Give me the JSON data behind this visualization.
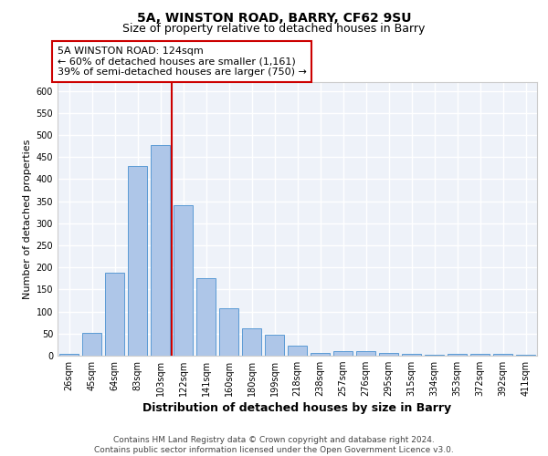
{
  "title": "5A, WINSTON ROAD, BARRY, CF62 9SU",
  "subtitle": "Size of property relative to detached houses in Barry",
  "xlabel": "Distribution of detached houses by size in Barry",
  "ylabel": "Number of detached properties",
  "categories": [
    "26sqm",
    "45sqm",
    "64sqm",
    "83sqm",
    "103sqm",
    "122sqm",
    "141sqm",
    "160sqm",
    "180sqm",
    "199sqm",
    "218sqm",
    "238sqm",
    "257sqm",
    "276sqm",
    "295sqm",
    "315sqm",
    "334sqm",
    "353sqm",
    "372sqm",
    "392sqm",
    "411sqm"
  ],
  "values": [
    5,
    52,
    188,
    430,
    478,
    340,
    175,
    108,
    62,
    47,
    23,
    7,
    10,
    10,
    6,
    4,
    3,
    5,
    4,
    4,
    3
  ],
  "bar_color": "#aec6e8",
  "bar_edge_color": "#5b9bd5",
  "highlight_line_color": "#cc0000",
  "annotation_text": "5A WINSTON ROAD: 124sqm\n← 60% of detached houses are smaller (1,161)\n39% of semi-detached houses are larger (750) →",
  "annotation_box_color": "#cc0000",
  "ylim": [
    0,
    620
  ],
  "yticks": [
    0,
    50,
    100,
    150,
    200,
    250,
    300,
    350,
    400,
    450,
    500,
    550,
    600
  ],
  "background_color": "#eef2f9",
  "grid_color": "#ffffff",
  "footer_text": "Contains HM Land Registry data © Crown copyright and database right 2024.\nContains public sector information licensed under the Open Government Licence v3.0.",
  "title_fontsize": 10,
  "subtitle_fontsize": 9,
  "xlabel_fontsize": 9,
  "ylabel_fontsize": 8,
  "tick_fontsize": 7,
  "annotation_fontsize": 8,
  "footer_fontsize": 6.5
}
